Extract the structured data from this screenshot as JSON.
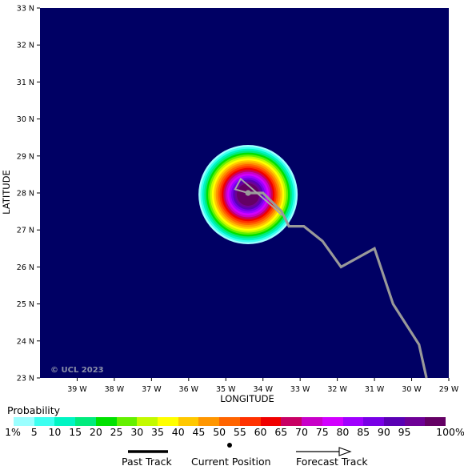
{
  "map": {
    "credit": "© UCL 2023",
    "xlabel": "LONGITUDE",
    "ylabel": "LATITUDE",
    "background_color": "#000064",
    "lon_ticks": [
      "39 W",
      "38 W",
      "37 W",
      "36 W",
      "35 W",
      "34 W",
      "33 W",
      "32 W",
      "31 W",
      "30 W",
      "29 W"
    ],
    "lat_ticks": [
      "33 N",
      "32 N",
      "31 N",
      "30 N",
      "29 N",
      "28 N",
      "27 N",
      "26 N",
      "25 N",
      "24 N",
      "23 N"
    ],
    "lon_range": [
      -40,
      -29
    ],
    "lat_range": [
      23,
      33
    ],
    "storm_center": {
      "lon": -34.4,
      "lat": 28.0
    },
    "past_track": [
      {
        "lon": -29.6,
        "lat": 23.0
      },
      {
        "lon": -29.8,
        "lat": 23.9
      },
      {
        "lon": -30.5,
        "lat": 25.0
      },
      {
        "lon": -31.0,
        "lat": 26.5
      },
      {
        "lon": -31.9,
        "lat": 26.0
      },
      {
        "lon": -32.4,
        "lat": 26.7
      },
      {
        "lon": -32.9,
        "lat": 27.1
      },
      {
        "lon": -33.3,
        "lat": 27.1
      },
      {
        "lon": -33.5,
        "lat": 27.5
      },
      {
        "lon": -34.0,
        "lat": 28.0
      },
      {
        "lon": -34.4,
        "lat": 28.0
      }
    ],
    "forecast_track": [
      {
        "lon": -34.4,
        "lat": 28.0
      },
      {
        "lon": -34.75,
        "lat": 28.1
      },
      {
        "lon": -34.6,
        "lat": 28.38
      },
      {
        "lon": -33.7,
        "lat": 27.6
      },
      {
        "lon": -33.5,
        "lat": 27.4
      }
    ]
  },
  "legend": {
    "title": "Probability",
    "bins": [
      {
        "label": "1%",
        "color": "#9bffff"
      },
      {
        "label": "5",
        "color": "#3cfff0"
      },
      {
        "label": "10",
        "color": "#00f5c3"
      },
      {
        "label": "15",
        "color": "#00eb7d"
      },
      {
        "label": "20",
        "color": "#00e100"
      },
      {
        "label": "25",
        "color": "#64f000"
      },
      {
        "label": "30",
        "color": "#c3fa00"
      },
      {
        "label": "35",
        "color": "#ffff00"
      },
      {
        "label": "40",
        "color": "#ffc800"
      },
      {
        "label": "45",
        "color": "#ff9600"
      },
      {
        "label": "50",
        "color": "#ff6400"
      },
      {
        "label": "55",
        "color": "#ff3200"
      },
      {
        "label": "60",
        "color": "#f00000"
      },
      {
        "label": "65",
        "color": "#c80064"
      },
      {
        "label": "70",
        "color": "#c800c8"
      },
      {
        "label": "75",
        "color": "#d200ff"
      },
      {
        "label": "80",
        "color": "#a000ff"
      },
      {
        "label": "85",
        "color": "#7800e6"
      },
      {
        "label": "90",
        "color": "#5a00b4"
      },
      {
        "label": "95",
        "color": "#6e0096"
      },
      {
        "label": "100%",
        "color": "#640064"
      }
    ],
    "key": {
      "past_track": "Past Track",
      "current_position": "Current Position",
      "forecast_track": "Forecast Track"
    }
  }
}
